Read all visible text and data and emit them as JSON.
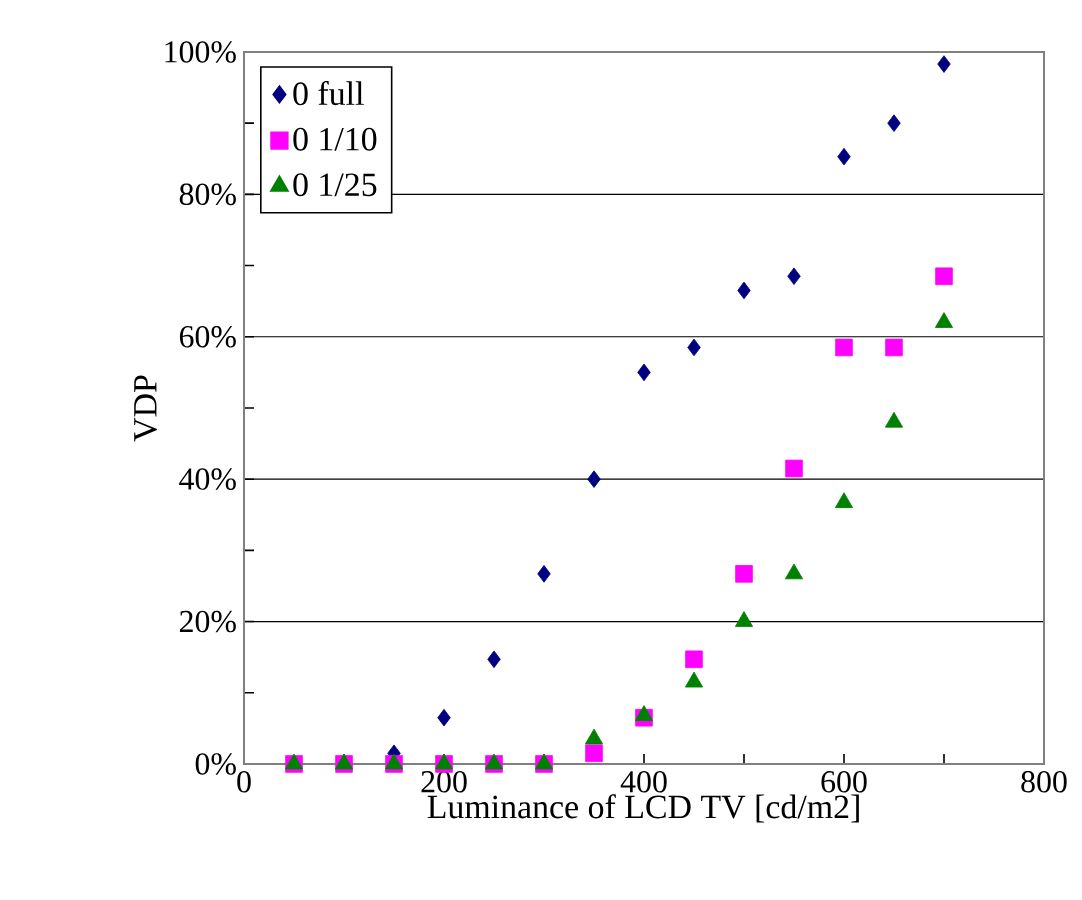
{
  "chart_data": {
    "type": "scatter",
    "xlabel": "Luminance of LCD TV [cd/m2]",
    "ylabel": "VDP",
    "x": [
      50,
      100,
      150,
      200,
      250,
      300,
      350,
      400,
      450,
      500,
      550,
      600,
      650,
      700
    ],
    "series": [
      {
        "name": "0 full",
        "color": "#000080",
        "marker": "diamond",
        "values": [
          null,
          null,
          1.5,
          6.5,
          14.7,
          26.7,
          40,
          55,
          58.5,
          66.5,
          68.5,
          85.3,
          90,
          98.3
        ]
      },
      {
        "name": "0 1/10",
        "color": "#ff00ff",
        "marker": "square",
        "values": [
          0,
          0,
          0,
          0,
          0,
          0,
          1.5,
          6.5,
          14.7,
          26.7,
          41.5,
          58.5,
          58.5,
          68.5
        ]
      },
      {
        "name": "0 1/25",
        "color": "#008000",
        "marker": "triangle",
        "values": [
          0,
          0,
          0,
          0,
          0,
          0,
          3.5,
          6.8,
          11.5,
          20,
          26.7,
          36.7,
          48,
          62
        ]
      }
    ],
    "xlim": [
      0,
      800
    ],
    "ylim": [
      0,
      100
    ],
    "xticks": [
      0,
      {
        "value": 100,
        "label": null
      },
      200,
      {
        "value": 300,
        "label": null
      },
      400,
      {
        "value": 500,
        "label": null
      },
      600,
      {
        "value": 700,
        "label": null
      },
      800
    ],
    "yticks": [
      {
        "value": 0,
        "label": "0%"
      },
      {
        "value": 10,
        "label": null
      },
      {
        "value": 20,
        "label": "20%"
      },
      {
        "value": 30,
        "label": null
      },
      {
        "value": 40,
        "label": "40%"
      },
      {
        "value": 50,
        "label": null
      },
      {
        "value": 60,
        "label": "60%"
      },
      {
        "value": 70,
        "label": null
      },
      {
        "value": 80,
        "label": "80%"
      },
      {
        "value": 90,
        "label": null
      },
      {
        "value": 100,
        "label": "100%"
      }
    ],
    "grid": "y",
    "legend": "top left"
  }
}
